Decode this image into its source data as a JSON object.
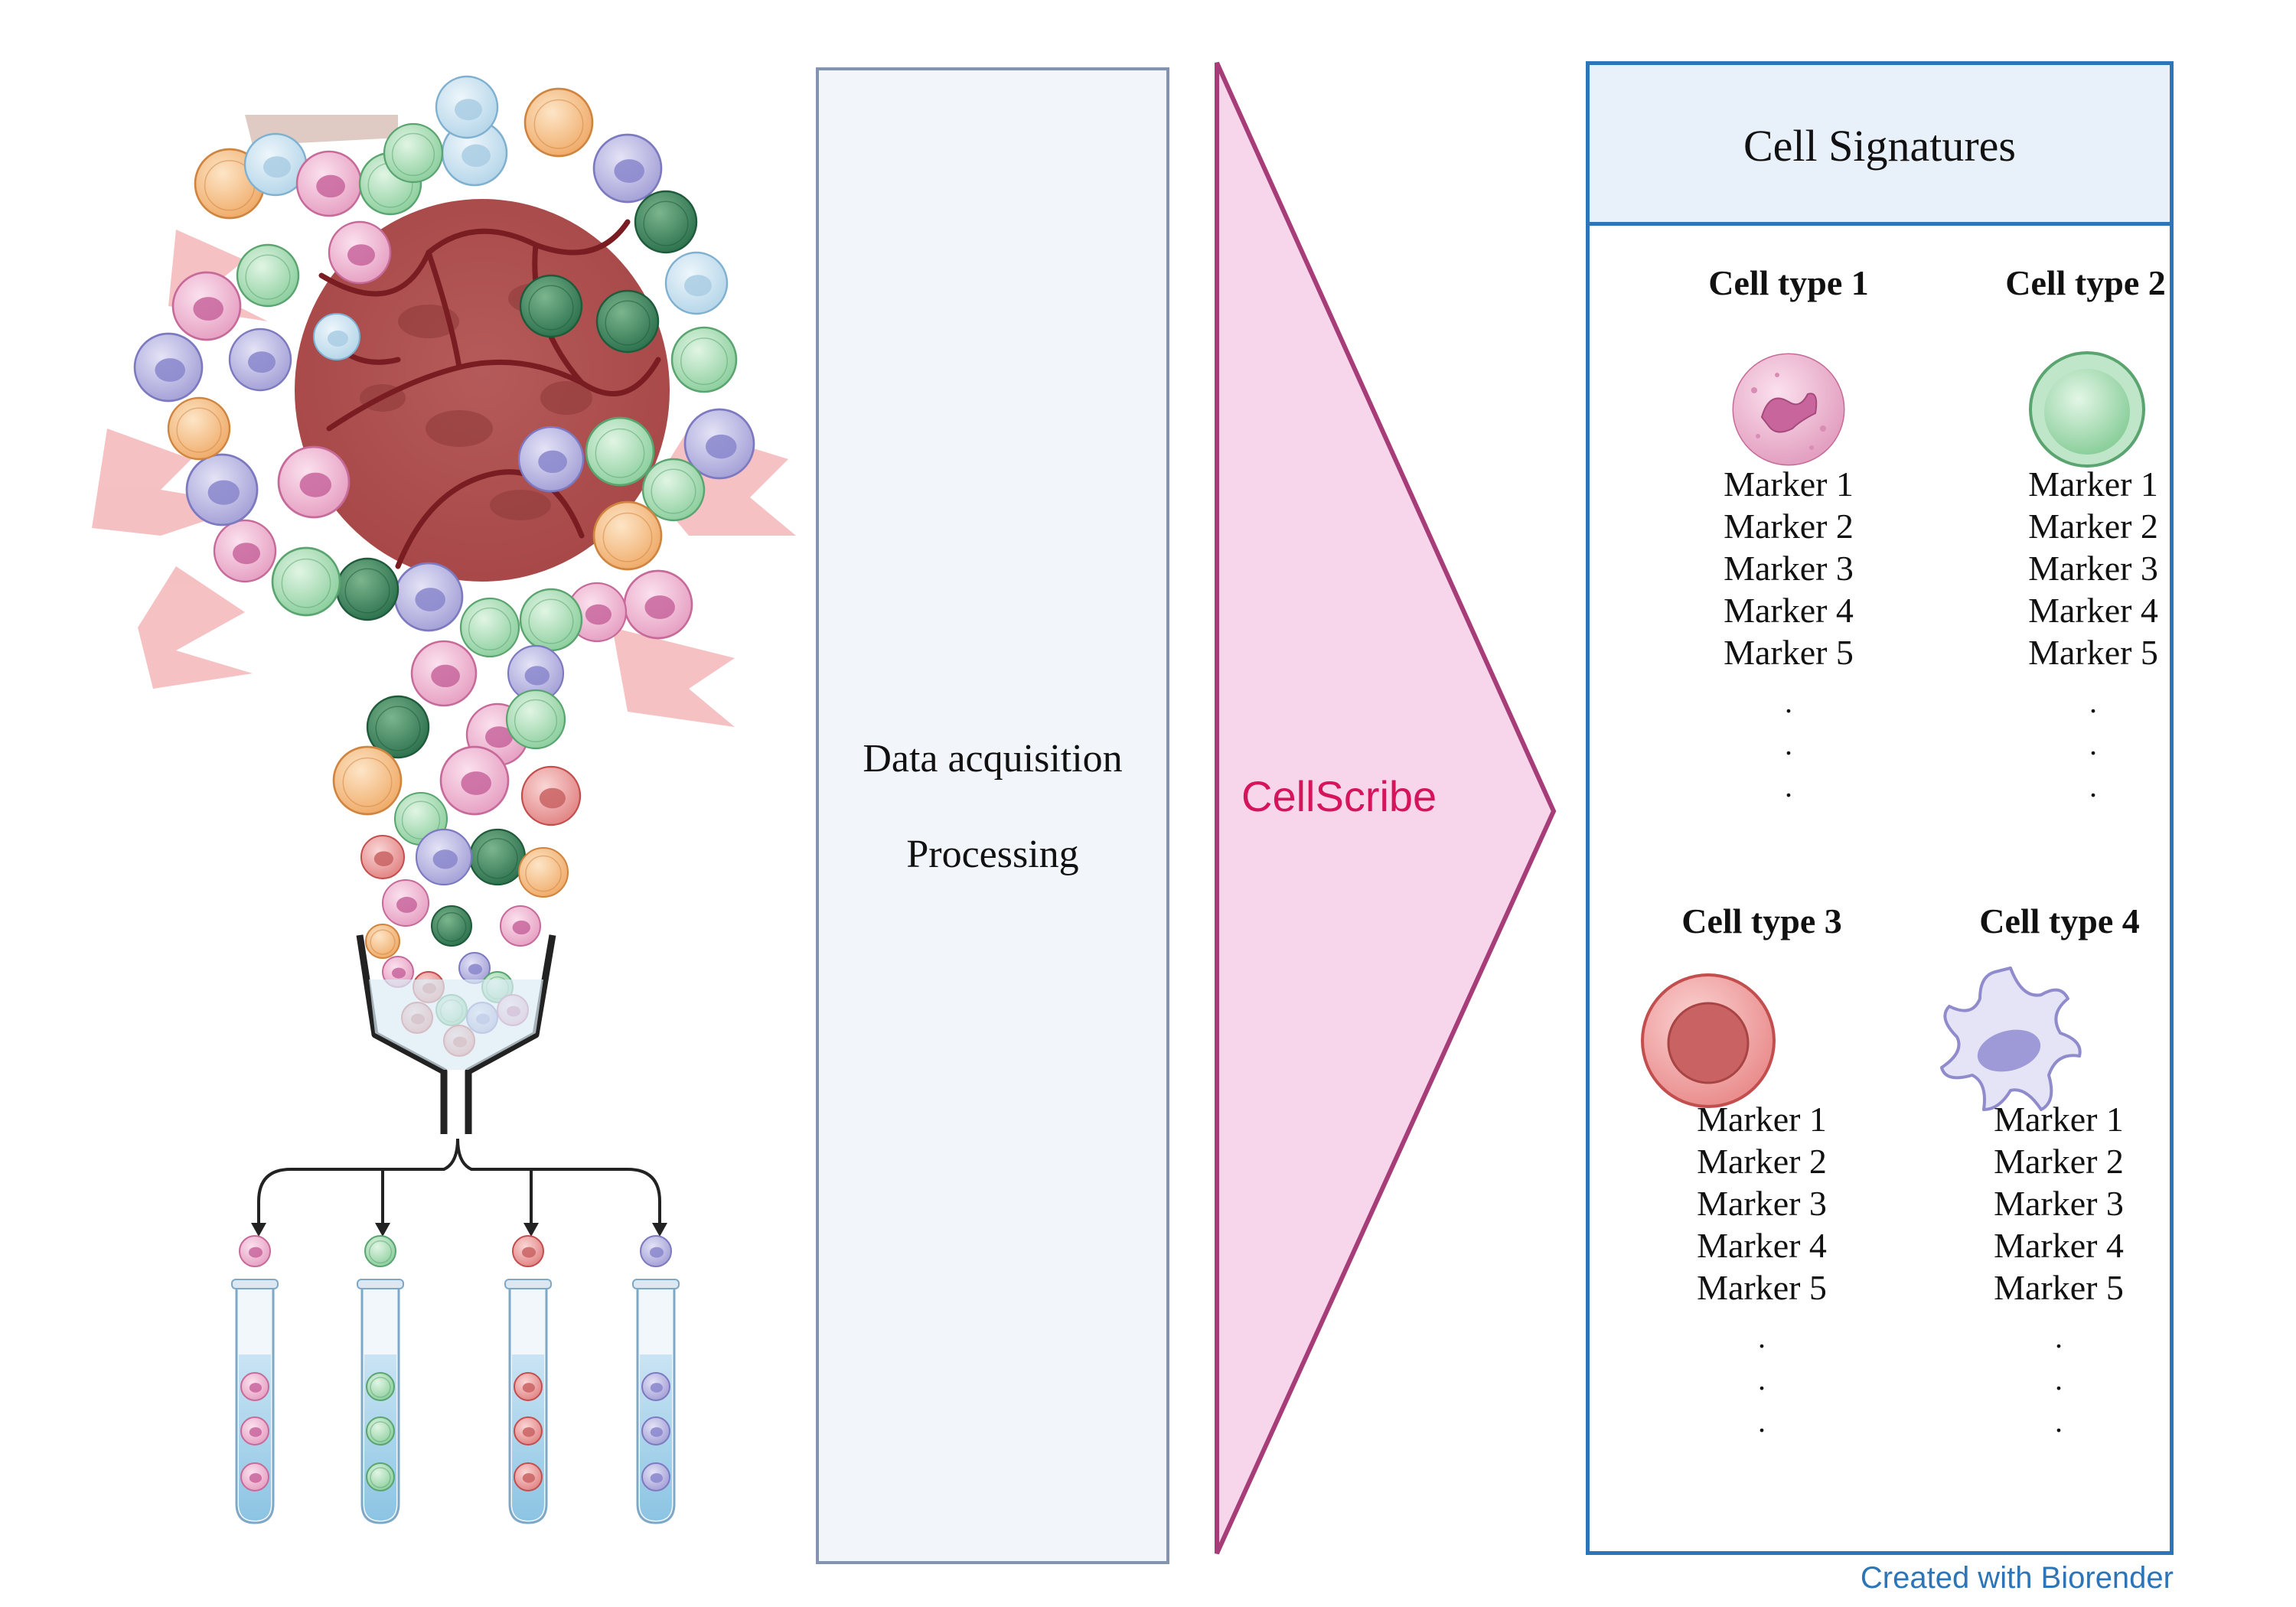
{
  "process": {
    "line1": "Data acquisition",
    "line2": "Processing"
  },
  "method": {
    "name": "CellScribe"
  },
  "signatures": {
    "title": "Cell Signatures",
    "cells": [
      {
        "title": "Cell type 1",
        "markers": [
          "Marker 1",
          "Marker 2",
          "Marker 3",
          "Marker 4",
          "Marker 5"
        ]
      },
      {
        "title": "Cell type 2",
        "markers": [
          "Marker 1",
          "Marker 2",
          "Marker 3",
          "Marker 4",
          "Marker 5"
        ]
      },
      {
        "title": "Cell type 3",
        "markers": [
          "Marker 1",
          "Marker 2",
          "Marker 3",
          "Marker 4",
          "Marker 5"
        ]
      },
      {
        "title": "Cell type 4",
        "markers": [
          "Marker 1",
          "Marker 2",
          "Marker 3",
          "Marker 4",
          "Marker 5"
        ]
      }
    ]
  },
  "credit": "Created with Biorender",
  "colors": {
    "panel_fill": "#f2f5fa",
    "panel_border": "#8494b0",
    "arrow_fill": "#f7d5ea",
    "arrow_stroke": "#a63d78",
    "method_text": "#d6145c",
    "signature_border": "#2b75b8",
    "signature_header": "#e8f0fa"
  }
}
